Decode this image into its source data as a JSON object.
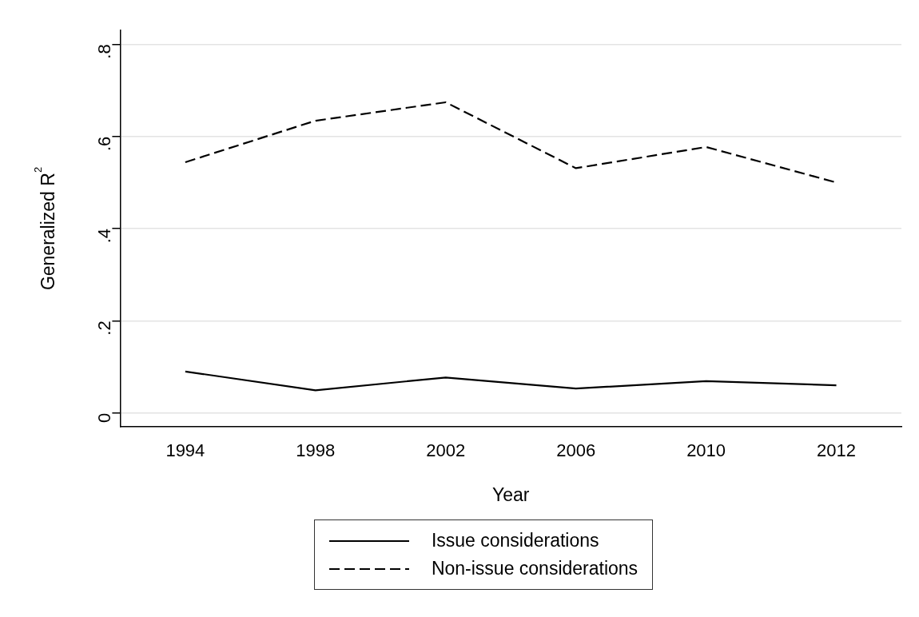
{
  "chart_data": {
    "type": "line",
    "xlabel": "Year",
    "ylabel": "Generalized R$^{2}$",
    "categories": [
      "1994",
      "1998",
      "2002",
      "2006",
      "2010",
      "2012"
    ],
    "series": [
      {
        "name": "Issue considerations",
        "color": "#000000",
        "line_style": "solid",
        "values": [
          0.09,
          0.049,
          0.077,
          0.053,
          0.069,
          0.06
        ]
      },
      {
        "name": "Non-issue considerations",
        "color": "#000000",
        "line_style": "dashed",
        "values": [
          0.544,
          0.634,
          0.674,
          0.531,
          0.577,
          0.5
        ]
      }
    ],
    "ylim": [
      -0.03,
      0.83
    ],
    "yticks": [
      {
        "value": 0,
        "label": "0"
      },
      {
        "value": 0.2,
        "label": ".2"
      },
      {
        "value": 0.4,
        "label": ".4"
      },
      {
        "value": 0.6,
        "label": ".6"
      },
      {
        "value": 0.8,
        "label": ".8"
      }
    ],
    "grid": "y",
    "legend": "bottom",
    "marker": "none"
  }
}
